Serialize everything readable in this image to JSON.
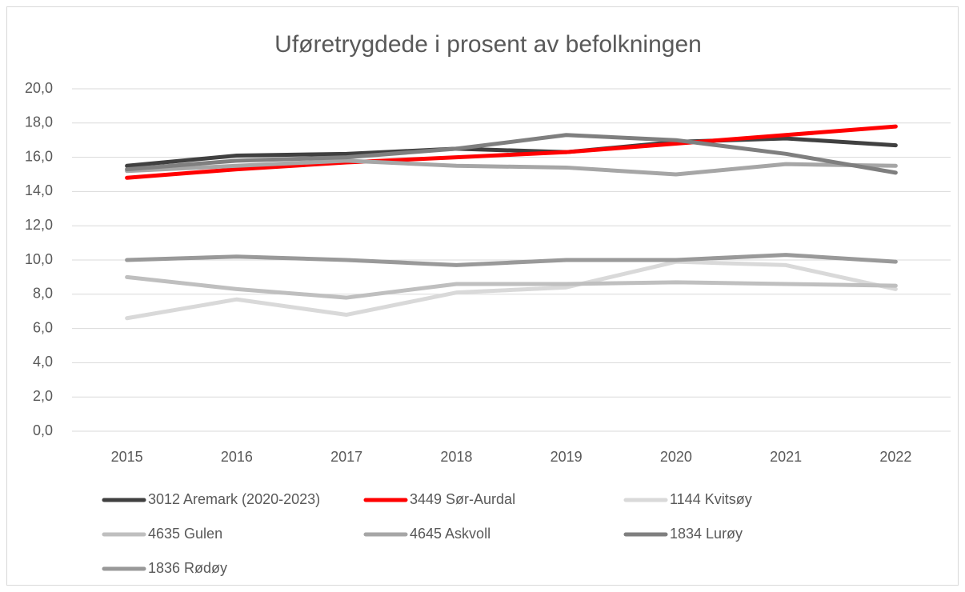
{
  "chart_data": {
    "type": "line",
    "title": "Uføretrygdede i prosent av befolkningen",
    "categories": [
      "2015",
      "2016",
      "2017",
      "2018",
      "2019",
      "2020",
      "2021",
      "2022"
    ],
    "ylim": [
      0,
      20
    ],
    "yticks": [
      {
        "value": 0,
        "label": "0,0"
      },
      {
        "value": 2,
        "label": "2,0"
      },
      {
        "value": 4,
        "label": "4,0"
      },
      {
        "value": 6,
        "label": "6,0"
      },
      {
        "value": 8,
        "label": "8,0"
      },
      {
        "value": 10,
        "label": "10,0"
      },
      {
        "value": 12,
        "label": "12,0"
      },
      {
        "value": 14,
        "label": "14,0"
      },
      {
        "value": 16,
        "label": "16,0"
      },
      {
        "value": 18,
        "label": "18,0"
      },
      {
        "value": 20,
        "label": "20,0"
      }
    ],
    "grid": true,
    "legend": "bottom",
    "series": [
      {
        "name": "3012 Aremark (2020-2023)",
        "color": "#404040",
        "values": [
          15.5,
          16.1,
          16.2,
          16.5,
          16.3,
          16.9,
          17.1,
          16.7
        ]
      },
      {
        "name": "3449 Sør-Aurdal",
        "color": "#ff0000",
        "values": [
          14.8,
          15.3,
          15.7,
          16.0,
          16.3,
          16.8,
          17.3,
          17.8
        ]
      },
      {
        "name": "1144 Kvitsøy",
        "color": "#d9d9d9",
        "values": [
          6.6,
          7.7,
          6.8,
          8.1,
          8.4,
          9.9,
          9.7,
          8.3
        ]
      },
      {
        "name": "4635 Gulen",
        "color": "#bfbfbf",
        "values": [
          9.0,
          8.3,
          7.8,
          8.6,
          8.6,
          8.7,
          8.6,
          8.5
        ]
      },
      {
        "name": "4645 Askvoll",
        "color": "#a6a6a6",
        "values": [
          15.2,
          15.5,
          15.8,
          15.5,
          15.4,
          15.0,
          15.6,
          15.5
        ]
      },
      {
        "name": "1834 Lurøy",
        "color": "#7f7f7f",
        "values": [
          15.3,
          15.8,
          16.0,
          16.5,
          17.3,
          17.0,
          16.2,
          15.1
        ]
      },
      {
        "name": "1836 Rødøy",
        "color": "#999999",
        "values": [
          10.0,
          10.2,
          10.0,
          9.7,
          10.0,
          10.0,
          10.3,
          9.9
        ]
      }
    ]
  }
}
